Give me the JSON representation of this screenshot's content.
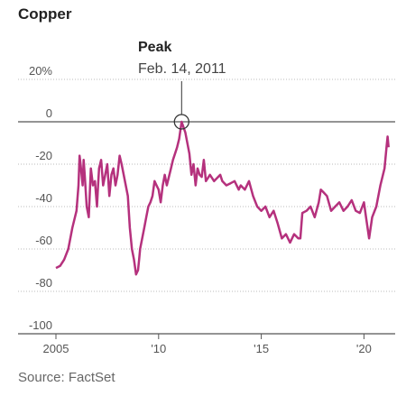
{
  "chart_data": {
    "type": "line",
    "title": "Copper",
    "source": "Source: FactSet",
    "y_unit_label": "20%",
    "ylim": [
      -100,
      20
    ],
    "xlim": [
      2005,
      2021.3
    ],
    "y_ticks": [
      20,
      0,
      -20,
      -40,
      -60,
      -80,
      -100
    ],
    "y_tick_labels": [
      "20%",
      "0",
      "-20",
      "-40",
      "-60",
      "-80",
      "-100"
    ],
    "x_ticks": [
      2005,
      2010,
      2015,
      2020
    ],
    "x_tick_labels": [
      "2005",
      "'10",
      "'15",
      "'20"
    ],
    "grid": "horizontal",
    "line_color": "#b5317d",
    "annotation": {
      "title": "Peak",
      "date": "Feb. 14, 2011",
      "x": 2011.12,
      "y": 0
    },
    "series": [
      {
        "x": [
          2005.0,
          2005.2,
          2005.4,
          2005.6,
          2005.8,
          2006.0,
          2006.1,
          2006.15,
          2006.2,
          2006.3,
          2006.35,
          2006.4,
          2006.5,
          2006.6,
          2006.7,
          2006.8,
          2006.9,
          2007.0,
          2007.05,
          2007.1,
          2007.2,
          2007.3,
          2007.4,
          2007.5,
          2007.6,
          2007.7,
          2007.8,
          2007.9,
          2008.0,
          2008.1,
          2008.2,
          2008.3,
          2008.4,
          2008.5,
          2008.6,
          2008.7,
          2008.8,
          2008.9,
          2009.0,
          2009.05,
          2009.1,
          2009.2,
          2009.3,
          2009.4,
          2009.5,
          2009.6,
          2009.7,
          2009.8,
          2009.9,
          2010.0,
          2010.1,
          2010.2,
          2010.3,
          2010.4,
          2010.5,
          2010.6,
          2010.7,
          2010.8,
          2010.9,
          2011.0,
          2011.12,
          2011.3,
          2011.5,
          2011.6,
          2011.7,
          2011.8,
          2011.9,
          2012.0,
          2012.1,
          2012.2,
          2012.3,
          2012.5,
          2012.7,
          2012.9,
          2013.0,
          2013.1,
          2013.3,
          2013.5,
          2013.7,
          2013.9,
          2014.0,
          2014.2,
          2014.4,
          2014.6,
          2014.8,
          2015.0,
          2015.2,
          2015.4,
          2015.6,
          2015.8,
          2016.0,
          2016.2,
          2016.4,
          2016.6,
          2016.8,
          2016.9,
          2017.0,
          2017.2,
          2017.4,
          2017.6,
          2017.8,
          2017.9,
          2018.0,
          2018.2,
          2018.4,
          2018.6,
          2018.8,
          2019.0,
          2019.2,
          2019.4,
          2019.6,
          2019.8,
          2020.0,
          2020.1,
          2020.25,
          2020.4,
          2020.6,
          2020.8,
          2021.0,
          2021.1,
          2021.15,
          2021.2
        ],
        "y": [
          -69,
          -68,
          -65,
          -60,
          -50,
          -42,
          -30,
          -16,
          -20,
          -30,
          -18,
          -25,
          -40,
          -45,
          -22,
          -30,
          -28,
          -40,
          -30,
          -22,
          -18,
          -30,
          -25,
          -20,
          -35,
          -25,
          -22,
          -30,
          -25,
          -16,
          -20,
          -25,
          -30,
          -35,
          -50,
          -60,
          -65,
          -72,
          -70,
          -65,
          -60,
          -55,
          -50,
          -45,
          -40,
          -38,
          -35,
          -28,
          -30,
          -32,
          -38,
          -30,
          -25,
          -30,
          -26,
          -22,
          -18,
          -15,
          -12,
          -8,
          0,
          -5,
          -15,
          -25,
          -20,
          -30,
          -22,
          -25,
          -26,
          -18,
          -28,
          -25,
          -28,
          -26,
          -25,
          -28,
          -30,
          -29,
          -28,
          -32,
          -30,
          -32,
          -28,
          -35,
          -40,
          -42,
          -40,
          -45,
          -42,
          -48,
          -55,
          -53,
          -57,
          -53,
          -55,
          -55,
          -43,
          -42,
          -40,
          -45,
          -38,
          -32,
          -33,
          -35,
          -42,
          -40,
          -38,
          -42,
          -40,
          -37,
          -42,
          -43,
          -38,
          -45,
          -55,
          -45,
          -40,
          -30,
          -22,
          -12,
          -7,
          -12
        ]
      }
    ]
  }
}
